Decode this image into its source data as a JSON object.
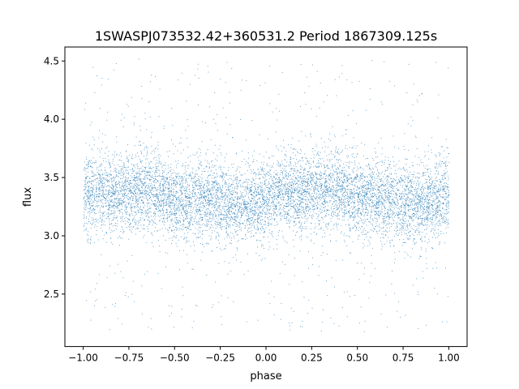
{
  "chart_data": {
    "type": "scatter",
    "title": "1SWASPJ073532.42+360531.2 Period 1867309.125s",
    "xlabel": "phase",
    "ylabel": "flux",
    "xlim": [
      -1.1,
      1.1
    ],
    "ylim": [
      2.05,
      4.62
    ],
    "xticks": [
      -1.0,
      -0.75,
      -0.5,
      -0.25,
      0.0,
      0.25,
      0.5,
      0.75,
      1.0
    ],
    "xtick_labels": [
      "−1.00",
      "−0.75",
      "−0.50",
      "−0.25",
      "0.00",
      "0.25",
      "0.50",
      "0.75",
      "1.00"
    ],
    "yticks": [
      2.5,
      3.0,
      3.5,
      4.0,
      4.5
    ],
    "ytick_labels": [
      "2.5",
      "3.0",
      "3.5",
      "4.0",
      "4.5"
    ],
    "grid": false,
    "legend": "none",
    "marker_color": "#1f77b4",
    "series": [
      {
        "x_range": [
          -1.0,
          1.0
        ],
        "x": [
          -1.0,
          -0.9,
          -0.8,
          -0.7,
          -0.6,
          -0.5,
          -0.4,
          -0.3,
          -0.2,
          -0.1,
          0.0,
          0.1,
          0.2,
          0.3,
          0.4,
          0.5,
          0.6,
          0.7,
          0.8,
          0.9,
          1.0
        ],
        "y_median": [
          3.35,
          3.38,
          3.35,
          3.4,
          3.38,
          3.32,
          3.3,
          3.32,
          3.25,
          3.3,
          3.28,
          3.38,
          3.35,
          3.4,
          3.42,
          3.35,
          3.32,
          3.3,
          3.28,
          3.3,
          3.35
        ],
        "y_dense_band": [
          3.05,
          3.65
        ],
        "y_outlier_range": [
          2.18,
          4.52
        ],
        "points_plotted": 9000
      }
    ]
  }
}
